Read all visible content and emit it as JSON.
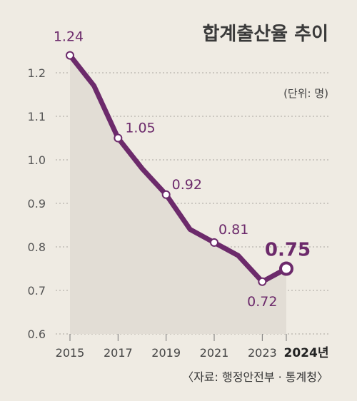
{
  "chart_data": {
    "type": "line",
    "title": "합계출산율 추이",
    "unit": "(단위: 명)",
    "source": "〈자료: 행정안전부 · 통계청〉",
    "x": [
      2015,
      2016,
      2017,
      2018,
      2019,
      2020,
      2021,
      2022,
      2023,
      2024
    ],
    "values": [
      1.24,
      1.17,
      1.05,
      0.98,
      0.92,
      0.84,
      0.81,
      0.78,
      0.72,
      0.75
    ],
    "point_labels": [
      {
        "x": 2015,
        "label": "1.24"
      },
      {
        "x": 2017,
        "label": "1.05"
      },
      {
        "x": 2019,
        "label": "0.92"
      },
      {
        "x": 2021,
        "label": "0.81"
      },
      {
        "x": 2023,
        "label": "0.72"
      },
      {
        "x": 2024,
        "label": "0.75"
      }
    ],
    "xticks": [
      "2015",
      "2017",
      "2019",
      "2021",
      "2023",
      "2024년"
    ],
    "yticks": [
      "0.6",
      "0.7",
      "0.8",
      "0.9",
      "1.0",
      "1.1",
      "1.2"
    ],
    "ylim": [
      0.6,
      1.24
    ],
    "grid": true,
    "colors": {
      "line": "#6c2a6b",
      "area": "#e2ddd5",
      "background": "#efebe3"
    }
  }
}
